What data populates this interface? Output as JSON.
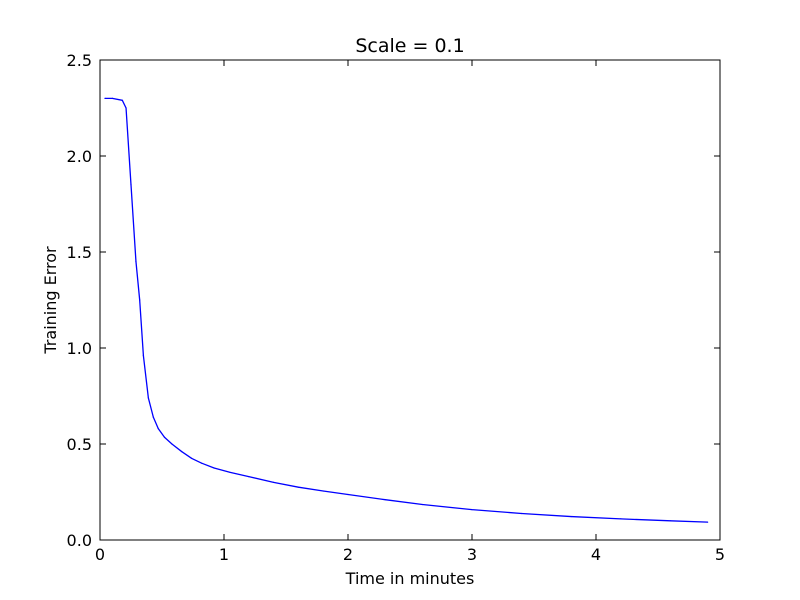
{
  "chart_data": {
    "type": "line",
    "title": "Scale = 0.1",
    "xlabel": "Time in minutes",
    "ylabel": "Training Error",
    "xlim": [
      0,
      5
    ],
    "ylim": [
      0.0,
      2.5
    ],
    "xticks": [
      0,
      1,
      2,
      3,
      4,
      5
    ],
    "xtick_labels": [
      "0",
      "1",
      "2",
      "3",
      "4",
      "5"
    ],
    "yticks": [
      0.0,
      0.5,
      1.0,
      1.5,
      2.0,
      2.5
    ],
    "ytick_labels": [
      "0.0",
      "0.5",
      "1.0",
      "1.5",
      "2.0",
      "2.5"
    ],
    "grid": false,
    "legend": "none",
    "series": [
      {
        "color": "#0000ff",
        "x": [
          0.04,
          0.1,
          0.18,
          0.21,
          0.25,
          0.29,
          0.32,
          0.35,
          0.39,
          0.43,
          0.47,
          0.52,
          0.58,
          0.66,
          0.74,
          0.82,
          0.92,
          1.05,
          1.2,
          1.4,
          1.6,
          1.8,
          2.0,
          2.3,
          2.6,
          3.0,
          3.4,
          3.8,
          4.2,
          4.6,
          4.9
        ],
        "y": [
          2.3,
          2.3,
          2.29,
          2.25,
          1.85,
          1.45,
          1.25,
          0.96,
          0.74,
          0.64,
          0.58,
          0.535,
          0.5,
          0.46,
          0.425,
          0.4,
          0.375,
          0.352,
          0.33,
          0.3,
          0.275,
          0.255,
          0.237,
          0.21,
          0.185,
          0.158,
          0.138,
          0.122,
          0.11,
          0.1,
          0.093
        ]
      }
    ]
  }
}
